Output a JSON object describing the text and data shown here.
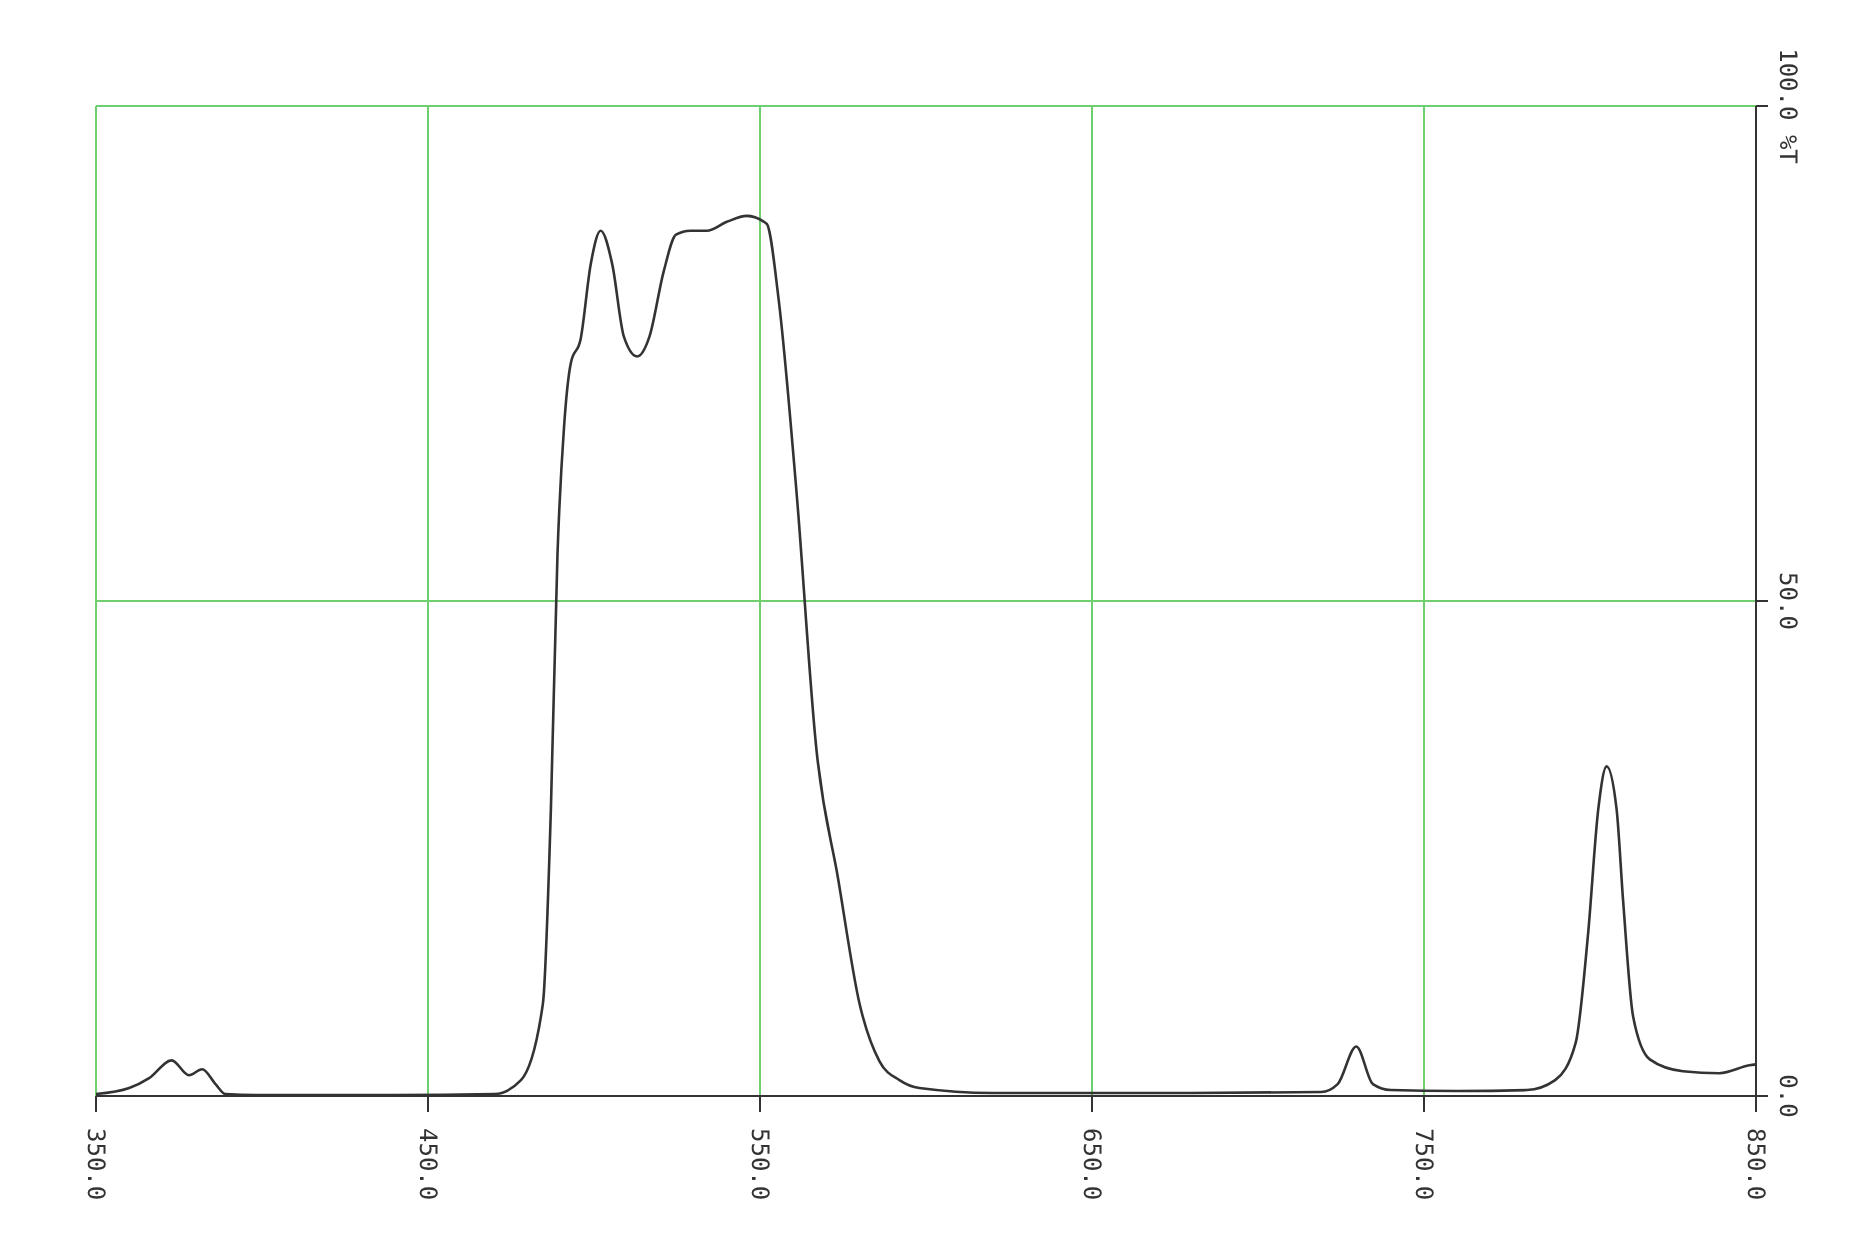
{
  "chart_data": {
    "type": "line",
    "x": [
      350,
      360,
      366,
      372.8,
      378,
      382,
      386,
      389,
      400,
      440,
      470,
      478,
      484.6,
      487,
      489,
      491,
      493,
      496,
      499,
      502,
      505.5,
      509,
      513,
      516.7,
      521,
      524.7,
      529,
      534,
      540,
      546,
      552,
      555.6,
      561,
      567,
      573.5,
      580,
      586,
      592,
      598,
      620,
      680,
      719,
      724,
      729.6,
      734.6,
      740,
      760,
      781,
      789.5,
      795.7,
      799.4,
      802.5,
      805,
      808,
      810,
      813,
      818,
      828,
      839,
      848,
      850
    ],
    "series": [
      {
        "color": "#333333",
        "values": [
          0.2,
          0.8,
          1.8,
          3.6,
          2.1,
          2.7,
          1.2,
          0.2,
          0.1,
          0.1,
          0.2,
          1.6,
          9.3,
          28.8,
          54.7,
          67.7,
          74,
          76.5,
          84,
          87.4,
          84,
          76.7,
          74.7,
          76.7,
          83.3,
          87,
          87.4,
          87.4,
          88.3,
          88.9,
          88.1,
          80.5,
          61,
          35,
          22,
          9.3,
          3.5,
          1.6,
          0.8,
          0.3,
          0.3,
          0.4,
          1.2,
          5,
          1.2,
          0.6,
          0.5,
          0.6,
          1.6,
          5.4,
          16.3,
          29,
          33.3,
          29,
          19.6,
          8,
          3.7,
          2.5,
          2.3,
          3.1,
          3.2
        ]
      }
    ],
    "xlim": [
      350,
      850
    ],
    "ylim": [
      0,
      100
    ],
    "xticks": [
      {
        "value": 350,
        "label": "350.0"
      },
      {
        "value": 450,
        "label": "450.0"
      },
      {
        "value": 550,
        "label": "550.0"
      },
      {
        "value": 650,
        "label": "650.0"
      },
      {
        "value": 750,
        "label": "750.0"
      },
      {
        "value": 850,
        "label": "850.0"
      }
    ],
    "yticks": [
      {
        "value": 0,
        "label": "0.0"
      },
      {
        "value": 50,
        "label": "50.0"
      },
      {
        "value": 100,
        "label": "100.0 %T"
      }
    ],
    "grid": true,
    "marker": "none",
    "line_style": "solid"
  }
}
